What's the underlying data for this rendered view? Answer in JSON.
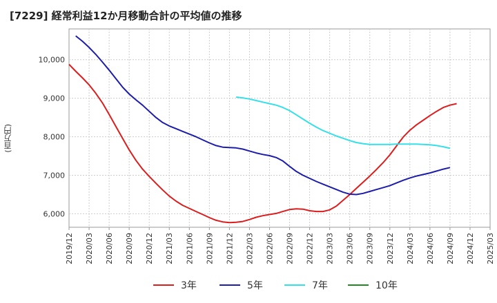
{
  "chart_data": {
    "type": "line",
    "title": "[7229]  経常利益12か月移動合計の平均値の推移",
    "ylabel": "(百万円)",
    "ylim": [
      5650,
      10800
    ],
    "y_ticks": [
      6000,
      7000,
      8000,
      9000,
      10000
    ],
    "y_tick_labels": [
      "6,000",
      "7,000",
      "8,000",
      "9,000",
      "10,000"
    ],
    "x_ticks": [
      "2019/12",
      "2020/03",
      "2020/06",
      "2020/09",
      "2020/12",
      "2021/03",
      "2021/06",
      "2021/09",
      "2021/12",
      "2022/03",
      "2022/06",
      "2022/09",
      "2022/12",
      "2023/03",
      "2023/06",
      "2023/09",
      "2023/12",
      "2024/03",
      "2024/06",
      "2024/09",
      "2024/12",
      "2025/03"
    ],
    "grid": true,
    "legend_position": "bottom",
    "series": [
      {
        "name": "3年",
        "color": "#dd1c1c",
        "points": [
          [
            "2019/12",
            9880
          ],
          [
            "2020/01",
            9700
          ],
          [
            "2020/02",
            9530
          ],
          [
            "2020/03",
            9350
          ],
          [
            "2020/04",
            9130
          ],
          [
            "2020/05",
            8880
          ],
          [
            "2020/06",
            8580
          ],
          [
            "2020/07",
            8270
          ],
          [
            "2020/08",
            7960
          ],
          [
            "2020/09",
            7660
          ],
          [
            "2020/10",
            7390
          ],
          [
            "2020/11",
            7160
          ],
          [
            "2020/12",
            6970
          ],
          [
            "2021/01",
            6790
          ],
          [
            "2021/02",
            6620
          ],
          [
            "2021/03",
            6460
          ],
          [
            "2021/04",
            6330
          ],
          [
            "2021/05",
            6220
          ],
          [
            "2021/06",
            6140
          ],
          [
            "2021/07",
            6060
          ],
          [
            "2021/08",
            5980
          ],
          [
            "2021/09",
            5900
          ],
          [
            "2021/10",
            5830
          ],
          [
            "2021/11",
            5790
          ],
          [
            "2021/12",
            5770
          ],
          [
            "2022/01",
            5780
          ],
          [
            "2022/02",
            5800
          ],
          [
            "2022/03",
            5850
          ],
          [
            "2022/04",
            5910
          ],
          [
            "2022/05",
            5950
          ],
          [
            "2022/06",
            5980
          ],
          [
            "2022/07",
            6010
          ],
          [
            "2022/08",
            6060
          ],
          [
            "2022/09",
            6110
          ],
          [
            "2022/10",
            6130
          ],
          [
            "2022/11",
            6120
          ],
          [
            "2022/12",
            6080
          ],
          [
            "2023/01",
            6060
          ],
          [
            "2023/02",
            6060
          ],
          [
            "2023/03",
            6100
          ],
          [
            "2023/04",
            6200
          ],
          [
            "2023/05",
            6350
          ],
          [
            "2023/06",
            6500
          ],
          [
            "2023/07",
            6660
          ],
          [
            "2023/08",
            6820
          ],
          [
            "2023/09",
            6980
          ],
          [
            "2023/10",
            7150
          ],
          [
            "2023/11",
            7330
          ],
          [
            "2023/12",
            7530
          ],
          [
            "2024/01",
            7760
          ],
          [
            "2024/02",
            7990
          ],
          [
            "2024/03",
            8170
          ],
          [
            "2024/04",
            8310
          ],
          [
            "2024/05",
            8430
          ],
          [
            "2024/06",
            8550
          ],
          [
            "2024/07",
            8660
          ],
          [
            "2024/08",
            8760
          ],
          [
            "2024/09",
            8820
          ],
          [
            "2024/10",
            8860
          ]
        ]
      },
      {
        "name": "5年",
        "color": "#1c1caa",
        "points": [
          [
            "2020/01",
            10620
          ],
          [
            "2020/02",
            10480
          ],
          [
            "2020/03",
            10320
          ],
          [
            "2020/04",
            10140
          ],
          [
            "2020/05",
            9940
          ],
          [
            "2020/06",
            9730
          ],
          [
            "2020/07",
            9510
          ],
          [
            "2020/08",
            9290
          ],
          [
            "2020/09",
            9110
          ],
          [
            "2020/10",
            8960
          ],
          [
            "2020/11",
            8820
          ],
          [
            "2020/12",
            8660
          ],
          [
            "2021/01",
            8500
          ],
          [
            "2021/02",
            8370
          ],
          [
            "2021/03",
            8280
          ],
          [
            "2021/04",
            8210
          ],
          [
            "2021/05",
            8140
          ],
          [
            "2021/06",
            8070
          ],
          [
            "2021/07",
            8000
          ],
          [
            "2021/08",
            7920
          ],
          [
            "2021/09",
            7840
          ],
          [
            "2021/10",
            7770
          ],
          [
            "2021/11",
            7730
          ],
          [
            "2021/12",
            7720
          ],
          [
            "2022/01",
            7710
          ],
          [
            "2022/02",
            7680
          ],
          [
            "2022/03",
            7630
          ],
          [
            "2022/04",
            7580
          ],
          [
            "2022/05",
            7540
          ],
          [
            "2022/06",
            7510
          ],
          [
            "2022/07",
            7460
          ],
          [
            "2022/08",
            7370
          ],
          [
            "2022/09",
            7230
          ],
          [
            "2022/10",
            7100
          ],
          [
            "2022/11",
            7000
          ],
          [
            "2022/12",
            6920
          ],
          [
            "2023/01",
            6840
          ],
          [
            "2023/02",
            6770
          ],
          [
            "2023/03",
            6700
          ],
          [
            "2023/04",
            6630
          ],
          [
            "2023/05",
            6560
          ],
          [
            "2023/06",
            6510
          ],
          [
            "2023/07",
            6500
          ],
          [
            "2023/08",
            6530
          ],
          [
            "2023/09",
            6580
          ],
          [
            "2023/10",
            6630
          ],
          [
            "2023/11",
            6680
          ],
          [
            "2023/12",
            6730
          ],
          [
            "2024/01",
            6800
          ],
          [
            "2024/02",
            6870
          ],
          [
            "2024/03",
            6930
          ],
          [
            "2024/04",
            6980
          ],
          [
            "2024/05",
            7020
          ],
          [
            "2024/06",
            7060
          ],
          [
            "2024/07",
            7110
          ],
          [
            "2024/08",
            7160
          ],
          [
            "2024/09",
            7200
          ]
        ]
      },
      {
        "name": "7年",
        "color": "#33e0e8",
        "points": [
          [
            "2022/01",
            9030
          ],
          [
            "2022/02",
            9010
          ],
          [
            "2022/03",
            8980
          ],
          [
            "2022/04",
            8940
          ],
          [
            "2022/05",
            8900
          ],
          [
            "2022/06",
            8860
          ],
          [
            "2022/07",
            8820
          ],
          [
            "2022/08",
            8760
          ],
          [
            "2022/09",
            8680
          ],
          [
            "2022/10",
            8570
          ],
          [
            "2022/11",
            8460
          ],
          [
            "2022/12",
            8350
          ],
          [
            "2023/01",
            8250
          ],
          [
            "2023/02",
            8160
          ],
          [
            "2023/03",
            8090
          ],
          [
            "2023/04",
            8020
          ],
          [
            "2023/05",
            7960
          ],
          [
            "2023/06",
            7900
          ],
          [
            "2023/07",
            7850
          ],
          [
            "2023/08",
            7820
          ],
          [
            "2023/09",
            7800
          ],
          [
            "2023/10",
            7800
          ],
          [
            "2023/11",
            7800
          ],
          [
            "2023/12",
            7800
          ],
          [
            "2024/01",
            7810
          ],
          [
            "2024/02",
            7810
          ],
          [
            "2024/03",
            7810
          ],
          [
            "2024/04",
            7810
          ],
          [
            "2024/05",
            7800
          ],
          [
            "2024/06",
            7790
          ],
          [
            "2024/07",
            7770
          ],
          [
            "2024/08",
            7740
          ],
          [
            "2024/09",
            7700
          ]
        ]
      },
      {
        "name": "10年",
        "color": "#228822",
        "points": []
      }
    ]
  }
}
